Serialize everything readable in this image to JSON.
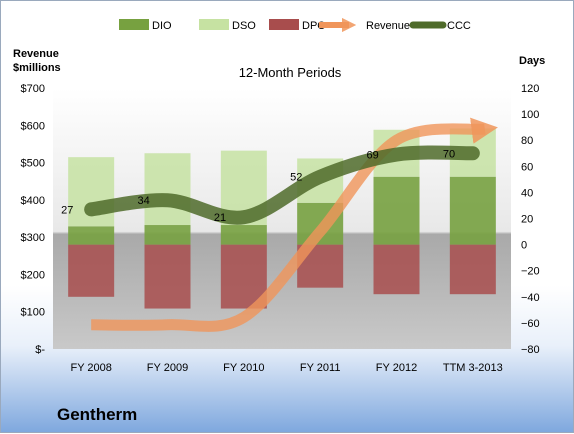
{
  "company": "Gentherm",
  "chart_data": {
    "type": "bar",
    "title": "12-Month Periods",
    "left_axis": {
      "label_lines": [
        "Revenue",
        "$millions"
      ],
      "range": [
        0,
        700
      ],
      "ticks": [
        0,
        100,
        200,
        300,
        400,
        500,
        600,
        700
      ],
      "tick_labels": [
        "$-",
        "$100",
        "$200",
        "$300",
        "$400",
        "$500",
        "$600",
        "$700"
      ]
    },
    "right_axis": {
      "label": "Days",
      "range": [
        -80,
        120
      ],
      "ticks": [
        -80,
        -60,
        -40,
        -20,
        0,
        20,
        40,
        60,
        80,
        100,
        120
      ]
    },
    "categories": [
      "FY 2008",
      "FY 2009",
      "FY 2010",
      "FY 2011",
      "FY 2012",
      "TTM 3-2013"
    ],
    "legend": {
      "position": "top",
      "items": [
        {
          "name": "DIO",
          "kind": "box",
          "color": "#77a140"
        },
        {
          "name": "DSO",
          "kind": "box",
          "color": "#c6e2a2"
        },
        {
          "name": "DPO",
          "kind": "box",
          "color": "#a84d4d"
        },
        {
          "name": "Revenue",
          "kind": "arrow",
          "color": "#f0955a"
        },
        {
          "name": "CCC",
          "kind": "line",
          "color": "#4f6b2a"
        }
      ]
    },
    "series": [
      {
        "name": "DIO",
        "axis": "right",
        "values": [
          14,
          15,
          15,
          32,
          52,
          52
        ]
      },
      {
        "name": "DSO",
        "axis": "right",
        "values": [
          53,
          55,
          57,
          34,
          36,
          37
        ]
      },
      {
        "name": "DPO",
        "axis": "right",
        "values": [
          -40,
          -49,
          -49,
          -33,
          -38,
          -38
        ]
      },
      {
        "name": "Revenue",
        "axis": "left",
        "type": "line",
        "values": [
          65,
          65,
          85,
          315,
          560,
          590
        ]
      },
      {
        "name": "CCC",
        "axis": "right",
        "type": "line",
        "values": [
          27,
          34,
          21,
          52,
          69,
          70
        ],
        "labels": [
          "27",
          "34",
          "21",
          "52",
          "69",
          "70"
        ]
      }
    ],
    "colors": {
      "DIO": "#77a140",
      "DSO": "#c6e2a2",
      "DPO": "#a84d4d",
      "Revenue": "#f0955a",
      "CCC": "#4f6b2a"
    },
    "grid": false
  }
}
